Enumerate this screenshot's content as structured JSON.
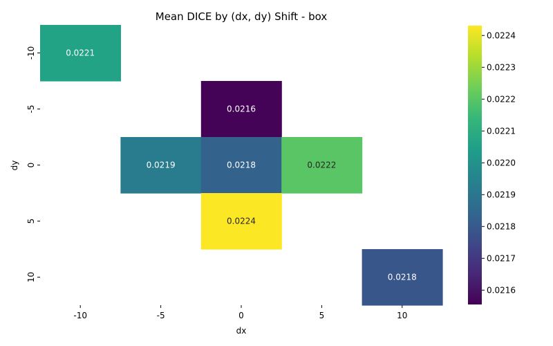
{
  "chart_data": {
    "type": "heatmap",
    "title": "Mean DICE by (dx, dy) Shift - box",
    "xlabel": "dx",
    "ylabel": "dy",
    "x_categories": [
      "-10",
      "-5",
      "0",
      "5",
      "10"
    ],
    "y_categories": [
      "-10",
      "-5",
      "0",
      "5",
      "10"
    ],
    "cells": [
      {
        "dx": "-10",
        "dy": "-10",
        "value": 0.02206,
        "label": "0.0221"
      },
      {
        "dx": "0",
        "dy": "-5",
        "value": 0.02156,
        "label": "0.0216"
      },
      {
        "dx": "-5",
        "dy": "0",
        "value": 0.02192,
        "label": "0.0219"
      },
      {
        "dx": "0",
        "dy": "0",
        "value": 0.02183,
        "label": "0.0218"
      },
      {
        "dx": "5",
        "dy": "0",
        "value": 0.0222,
        "label": "0.0222"
      },
      {
        "dx": "0",
        "dy": "5",
        "value": 0.02243,
        "label": "0.0224"
      },
      {
        "dx": "10",
        "dy": "10",
        "value": 0.02179,
        "label": "0.0218"
      }
    ],
    "colorbar": {
      "colormap": "viridis",
      "vmin": 0.021555,
      "vmax": 0.022431,
      "ticks": [
        "0.0216",
        "0.0217",
        "0.0218",
        "0.0219",
        "0.0220",
        "0.0221",
        "0.0222",
        "0.0223",
        "0.0224"
      ]
    },
    "grid": false
  }
}
